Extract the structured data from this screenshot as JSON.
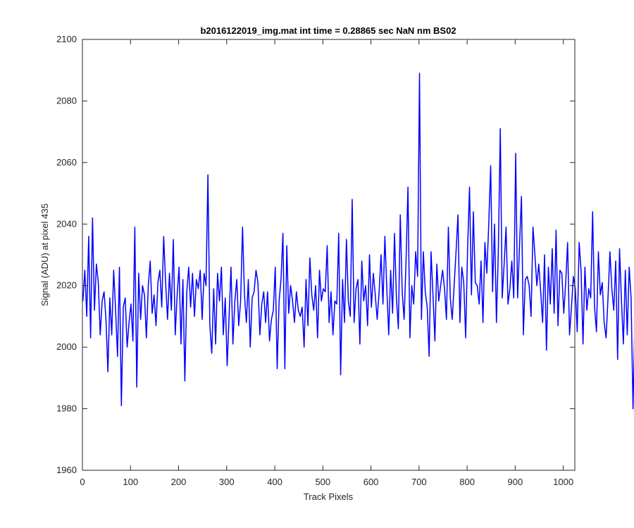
{
  "chart_data": {
    "type": "line",
    "title": "b2016122019_img.mat int time = 0.28865 sec  NaN nm BS02",
    "xlabel": "Track Pixels",
    "ylabel": "Signal (ADU) at pixel 435",
    "xlim": [
      0,
      1024
    ],
    "ylim": [
      1960,
      2100
    ],
    "xticks": [
      0,
      100,
      200,
      300,
      400,
      500,
      600,
      700,
      800,
      900,
      1000
    ],
    "yticks": [
      1960,
      1980,
      2000,
      2020,
      2040,
      2060,
      2080,
      2100
    ],
    "grid": false,
    "line_color": "#0000ff",
    "series": [
      {
        "x_start": 1,
        "x_step": 4,
        "values": [
          2015,
          2025,
          2010,
          2036,
          2003,
          2042,
          2012,
          2027,
          2021,
          2004,
          2015,
          2018,
          2009,
          1992,
          2016,
          2004,
          2025,
          2012,
          1997,
          2026,
          1981,
          2013,
          2016,
          2000,
          2008,
          2014,
          2002,
          2039,
          1987,
          2024,
          2009,
          2020,
          2017,
          2003,
          2020,
          2028,
          2011,
          2017,
          2007,
          2021,
          2025,
          2013,
          2036,
          2021,
          2009,
          2024,
          2012,
          2035,
          2004,
          2017,
          2026,
          2001,
          2022,
          1989,
          2018,
          2026,
          2013,
          2024,
          2010,
          2022,
          2019,
          2025,
          2009,
          2024,
          2020,
          2056,
          2007,
          1998,
          2019,
          2001,
          2024,
          2015,
          2026,
          2004,
          2016,
          1994,
          2010,
          2026,
          2001,
          2015,
          2022,
          2007,
          2015,
          2039,
          2017,
          2008,
          2022,
          2000,
          2016,
          2018,
          2025,
          2021,
          2004,
          2014,
          2018,
          2008,
          2018,
          2002,
          2009,
          2012,
          2026,
          1993,
          2015,
          2022,
          2037,
          1993,
          2033,
          2011,
          2020,
          2015,
          2008,
          2018,
          2012,
          2010,
          2013,
          2000,
          2022,
          2007,
          2029,
          2017,
          2012,
          2020,
          2003,
          2025,
          2015,
          2019,
          2018,
          2033,
          2008,
          2018,
          2004,
          2015,
          2014,
          2037,
          1991,
          2022,
          2008,
          2035,
          2015,
          2010,
          2048,
          2008,
          2019,
          2022,
          2001,
          2028,
          2015,
          2020,
          2007,
          2030,
          2013,
          2024,
          2017,
          2009,
          2018,
          2030,
          2014,
          2036,
          2019,
          2004,
          2025,
          2011,
          2037,
          2016,
          2006,
          2043,
          2018,
          2009,
          2028,
          2052,
          2003,
          2020,
          2014,
          2031,
          2023,
          2089,
          2009,
          2031,
          2018,
          2013,
          1997,
          2031,
          2017,
          2002,
          2027,
          2015,
          2020,
          2025,
          2019,
          2009,
          2039,
          2016,
          2009,
          2020,
          2031,
          2043,
          2008,
          2026,
          2021,
          2003,
          2032,
          2052,
          2017,
          2044,
          2021,
          2020,
          2014,
          2028,
          2008,
          2034,
          2024,
          2040,
          2059,
          2018,
          2040,
          2008,
          2032,
          2071,
          2016,
          2027,
          2039,
          2014,
          2019,
          2028,
          2016,
          2063,
          2016,
          2033,
          2049,
          2004,
          2022,
          2023,
          2020,
          2010,
          2039,
          2030,
          2020,
          2027,
          2018,
          2008,
          2030,
          1999,
          2026,
          2014,
          2032,
          2011,
          2038,
          2007,
          2025,
          2024,
          2011,
          2021,
          2034,
          2004,
          2013,
          2023,
          2019,
          2005,
          2034,
          2025,
          2001,
          2026,
          2012,
          2019,
          2016,
          2044,
          2013,
          2005,
          2031,
          2017,
          2021,
          2008,
          2003,
          2016,
          2031,
          2019,
          2012,
          2028,
          1996,
          2032,
          2015,
          2001,
          2025,
          2004,
          2026,
          2016,
          1980,
          2011,
          2027,
          2002,
          2017,
          2016,
          2025,
          2013,
          1994,
          2028,
          2019,
          2010,
          2019,
          1999,
          2026,
          2016,
          2003,
          2019,
          2021,
          2013,
          1994,
          2021,
          2011,
          2019,
          2008,
          1995,
          2026,
          2000,
          2017,
          2021,
          1999,
          2013,
          2007,
          2019,
          2019,
          2006,
          1993,
          2029,
          2018,
          1995,
          2010,
          2008,
          2019,
          1997,
          2011,
          2024,
          2017,
          1998,
          2005,
          2017,
          1989,
          2016,
          2021,
          1969,
          2000,
          2007,
          2012,
          1991,
          2023,
          2000,
          2021,
          2008,
          2022,
          2000,
          2017
        ]
      }
    ]
  }
}
